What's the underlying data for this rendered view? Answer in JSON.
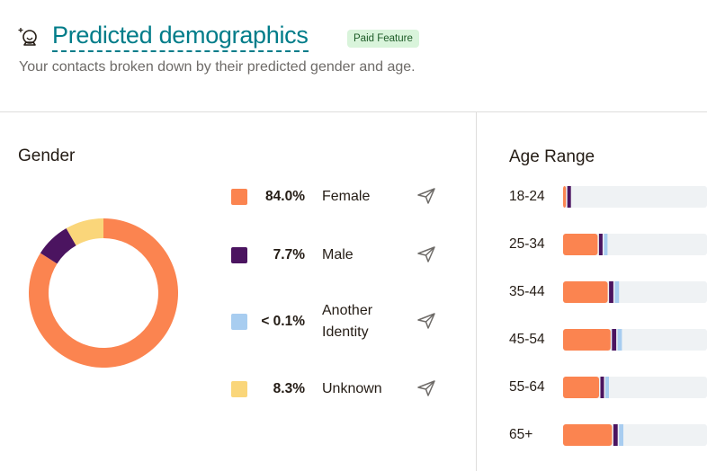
{
  "header": {
    "icon": "crystal-ball-icon",
    "title": "Predicted demographics",
    "badge": "Paid Feature",
    "subtitle": "Your contacts broken down by their predicted gender and age."
  },
  "gender": {
    "title": "Gender",
    "items": [
      {
        "key": "female",
        "percent": "84.0%",
        "label": "Female",
        "value": 84.0,
        "color": "#fb8450",
        "action_icon": "send-icon"
      },
      {
        "key": "male",
        "percent": "7.7%",
        "label": "Male",
        "value": 7.7,
        "color": "#4b1460",
        "action_icon": "send-icon"
      },
      {
        "key": "another",
        "percent": "< 0.1%",
        "label": "Another Identity",
        "value": 0.0,
        "color": "#a8cdf0",
        "action_icon": "send-icon"
      },
      {
        "key": "unknown",
        "percent": "8.3%",
        "label": "Unknown",
        "value": 8.3,
        "color": "#fad67a",
        "action_icon": "send-icon"
      }
    ]
  },
  "age": {
    "title": "Age Range",
    "track_color": "#eff2f4",
    "rows": [
      {
        "label": "18-24",
        "female": 2,
        "male": 2.5,
        "another": 0
      },
      {
        "label": "25-34",
        "female": 24,
        "male": 2.5,
        "another": 2.5
      },
      {
        "label": "35-44",
        "female": 31,
        "male": 3,
        "another": 3
      },
      {
        "label": "45-54",
        "female": 33,
        "male": 3,
        "another": 3
      },
      {
        "label": "55-64",
        "female": 25,
        "male": 2.5,
        "another": 2.5
      },
      {
        "label": "65+",
        "female": 34,
        "male": 3,
        "another": 3
      }
    ]
  }
}
